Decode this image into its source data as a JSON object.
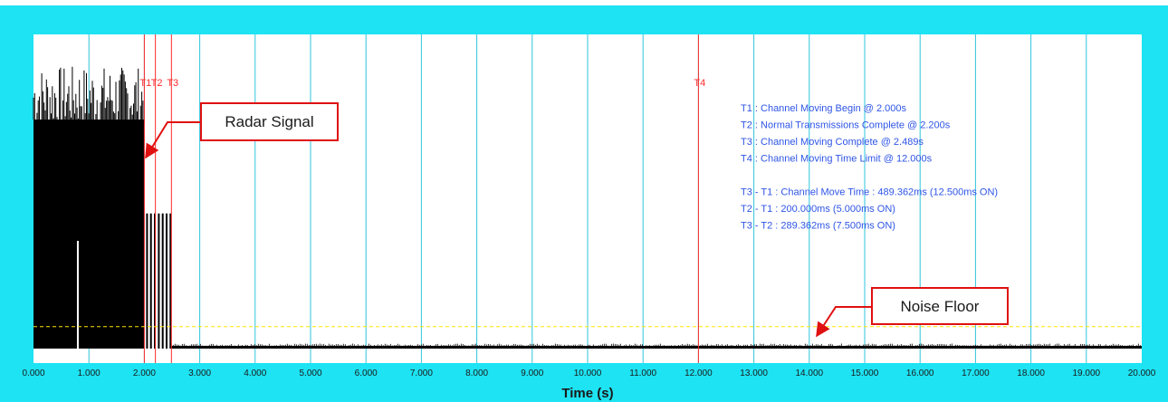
{
  "chart_data": {
    "type": "line",
    "title": "",
    "xlabel": "Time (s)",
    "ylabel": "",
    "xlim": [
      0,
      20
    ],
    "x_ticks": [
      0,
      1,
      2,
      3,
      4,
      5,
      6,
      7,
      8,
      9,
      10,
      11,
      12,
      13,
      14,
      15,
      16,
      17,
      18,
      19,
      20
    ],
    "x_tick_labels": [
      "0.000",
      "1.000",
      "2.000",
      "3.000",
      "4.000",
      "5.000",
      "6.000",
      "7.000",
      "8.000",
      "9.000",
      "10.000",
      "11.000",
      "12.000",
      "13.000",
      "14.000",
      "15.000",
      "16.000",
      "17.000",
      "18.000",
      "19.000",
      "20.000"
    ],
    "grid": "vertical",
    "markers": [
      {
        "label": "T1",
        "x": 2.0
      },
      {
        "label": "T2",
        "x": 2.2
      },
      {
        "label": "T3",
        "x": 2.489
      },
      {
        "label": "T4",
        "x": 12.0
      }
    ],
    "signal_segments": [
      {
        "x_start": 0.0,
        "x_end": 2.0,
        "level": "high",
        "peak": 0.9
      },
      {
        "x_start": 2.0,
        "x_end": 2.489,
        "level": "pulses",
        "peak": 0.43
      },
      {
        "x_start": 2.489,
        "x_end": 20.0,
        "level": "noise",
        "peak": 0.01
      }
    ],
    "white_spike_x": 0.8,
    "noise_floor_level": 0.07,
    "colors": {
      "frame": "#1de3f3",
      "grid": "#2fc4dd",
      "signal": "#000000",
      "marker": "#ff2a2a",
      "annotation": "#2f55e6",
      "noise_floor": "#ffe600",
      "callout_border": "#e01010"
    }
  },
  "annotations": {
    "lines": [
      "T1 : Channel Moving Begin @ 2.000s",
      "T2 : Normal Transmissions Complete @ 2.200s",
      "T3 : Channel Moving Complete @ 2.489s",
      "T4 : Channel Moving Time Limit @ 12.000s",
      "",
      "T3 - T1 : Channel Move Time : 489.362ms (12.500ms ON)",
      "T2 - T1 : 200.000ms (5.000ms ON)",
      "T3 - T2 : 289.362ms (7.500ms ON)"
    ]
  },
  "callouts": {
    "radar": "Radar Signal",
    "noise": "Noise Floor"
  }
}
